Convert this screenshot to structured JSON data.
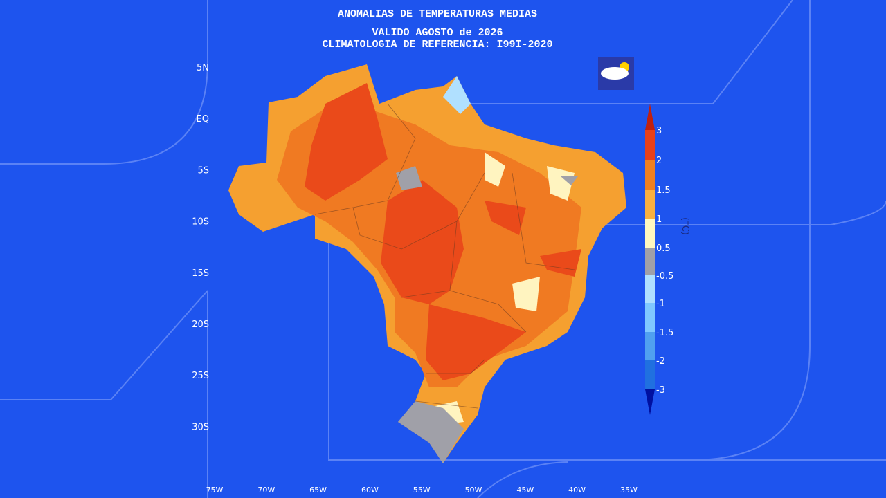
{
  "header": {
    "title": "ANOMALIAS DE TEMPERATURAS MEDIAS",
    "valid": "VALIDO AGOSTO de 2026",
    "reference": "CLIMATOLOGIA DE REFERENCIA: I99I-2020"
  },
  "map": {
    "lat_labels": [
      "5N",
      "EQ",
      "5S",
      "10S",
      "15S",
      "20S",
      "25S",
      "30S"
    ],
    "lon_labels": [
      "75W",
      "70W",
      "65W",
      "60W",
      "55W",
      "50W",
      "45W",
      "40W",
      "35W"
    ]
  },
  "colorbar": {
    "unit": "(°C)",
    "labels": [
      "3",
      "2",
      "1.5",
      "1",
      "0.5",
      "-0.5",
      "-1",
      "-1.5",
      "-2",
      "-3"
    ]
  }
}
